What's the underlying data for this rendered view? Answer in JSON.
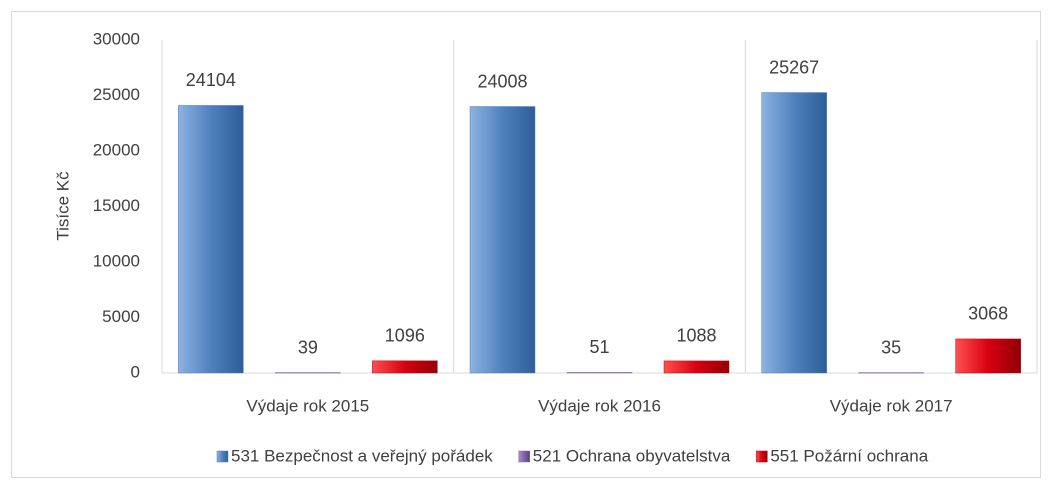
{
  "chart_data": {
    "type": "bar",
    "y_label": "Tisíce Kč",
    "categories": [
      "Výdaje rok 2015",
      "Výdaje rok 2016",
      "Výdaje rok 2017"
    ],
    "series": [
      {
        "name": "531 Bezpečnost a veřejný pořádek",
        "color": "#4f81bd",
        "values": [
          24104,
          24008,
          25267
        ]
      },
      {
        "name": "521 Ochrana obyvatelstva",
        "color": "#8064a2",
        "values": [
          39,
          51,
          35
        ]
      },
      {
        "name": "551 Požární ochrana",
        "color": "#c0000c",
        "values": [
          1096,
          1088,
          3068
        ]
      }
    ],
    "ylim": [
      0,
      30000
    ],
    "yticks": [
      0,
      5000,
      10000,
      15000,
      20000,
      25000,
      30000
    ],
    "grid": false,
    "legend": "bottom"
  }
}
